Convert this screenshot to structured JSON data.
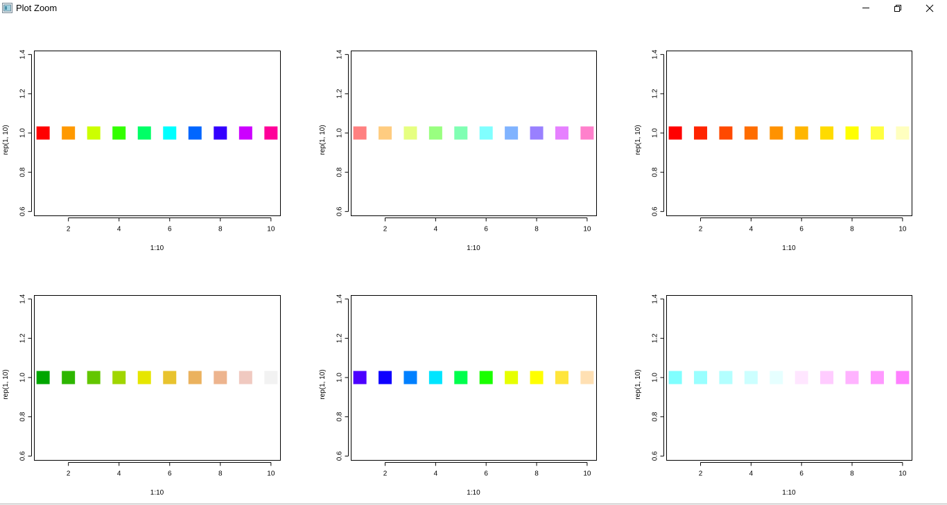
{
  "window": {
    "title": "Plot Zoom",
    "icon": "r-plot-window-icon",
    "controls": [
      "minimize-icon",
      "restore-icon",
      "close-icon"
    ]
  },
  "chart_data": [
    {
      "type": "scatter",
      "marker": "filled-square",
      "xlabel": "1:10",
      "ylabel": "rep(1, 10)",
      "x": [
        1,
        2,
        3,
        4,
        5,
        6,
        7,
        8,
        9,
        10
      ],
      "y": [
        1,
        1,
        1,
        1,
        1,
        1,
        1,
        1,
        1,
        1
      ],
      "colors": [
        "#FF0000",
        "#FF9900",
        "#CCFF00",
        "#33FF00",
        "#00FF66",
        "#00FFFF",
        "#0066FF",
        "#3300FF",
        "#CC00FF",
        "#FF0099"
      ],
      "xticks": [
        2,
        4,
        6,
        8,
        10
      ],
      "yticks": [
        "0.6",
        "0.8",
        "1.0",
        "1.2",
        "1.4"
      ],
      "xlim": [
        0.64,
        10.36
      ],
      "ylim": [
        0.58,
        1.42
      ]
    },
    {
      "type": "scatter",
      "marker": "filled-square",
      "xlabel": "1:10",
      "ylabel": "rep(1, 10)",
      "x": [
        1,
        2,
        3,
        4,
        5,
        6,
        7,
        8,
        9,
        10
      ],
      "y": [
        1,
        1,
        1,
        1,
        1,
        1,
        1,
        1,
        1,
        1
      ],
      "colors": [
        "#FF8080",
        "#FFCC80",
        "#E6FF80",
        "#99FF80",
        "#80FFB3",
        "#80FFFF",
        "#80B3FF",
        "#9980FF",
        "#E680FF",
        "#FF80CC"
      ],
      "xticks": [
        2,
        4,
        6,
        8,
        10
      ],
      "yticks": [
        "0.6",
        "0.8",
        "1.0",
        "1.2",
        "1.4"
      ],
      "xlim": [
        0.64,
        10.36
      ],
      "ylim": [
        0.58,
        1.42
      ]
    },
    {
      "type": "scatter",
      "marker": "filled-square",
      "xlabel": "1:10",
      "ylabel": "rep(1, 10)",
      "x": [
        1,
        2,
        3,
        4,
        5,
        6,
        7,
        8,
        9,
        10
      ],
      "y": [
        1,
        1,
        1,
        1,
        1,
        1,
        1,
        1,
        1,
        1
      ],
      "colors": [
        "#FF0000",
        "#FF2400",
        "#FF4900",
        "#FF6D00",
        "#FF9200",
        "#FFB600",
        "#FFDB00",
        "#FFFF00",
        "#FFFF40",
        "#FFFFBF"
      ],
      "xticks": [
        2,
        4,
        6,
        8,
        10
      ],
      "yticks": [
        "0.6",
        "0.8",
        "1.0",
        "1.2",
        "1.4"
      ],
      "xlim": [
        0.64,
        10.36
      ],
      "ylim": [
        0.58,
        1.42
      ]
    },
    {
      "type": "scatter",
      "marker": "filled-square",
      "xlabel": "1:10",
      "ylabel": "rep(1, 10)",
      "x": [
        1,
        2,
        3,
        4,
        5,
        6,
        7,
        8,
        9,
        10
      ],
      "y": [
        1,
        1,
        1,
        1,
        1,
        1,
        1,
        1,
        1,
        1
      ],
      "colors": [
        "#00A600",
        "#2DB600",
        "#63C600",
        "#A0D600",
        "#E6E600",
        "#E8C32E",
        "#EBB25E",
        "#EDB48E",
        "#F0C9C0",
        "#F2F2F2"
      ],
      "xticks": [
        2,
        4,
        6,
        8,
        10
      ],
      "yticks": [
        "0.6",
        "0.8",
        "1.0",
        "1.2",
        "1.4"
      ],
      "xlim": [
        0.64,
        10.36
      ],
      "ylim": [
        0.58,
        1.42
      ]
    },
    {
      "type": "scatter",
      "marker": "filled-square",
      "xlabel": "1:10",
      "ylabel": "rep(1, 10)",
      "x": [
        1,
        2,
        3,
        4,
        5,
        6,
        7,
        8,
        9,
        10
      ],
      "y": [
        1,
        1,
        1,
        1,
        1,
        1,
        1,
        1,
        1,
        1
      ],
      "colors": [
        "#4C00FF",
        "#0F00FF",
        "#0080FF",
        "#00E5FF",
        "#00FF4D",
        "#1AFF00",
        "#E6FF00",
        "#FFFF00",
        "#FFE53B",
        "#FFE0B3"
      ],
      "xticks": [
        2,
        4,
        6,
        8,
        10
      ],
      "yticks": [
        "0.6",
        "0.8",
        "1.0",
        "1.2",
        "1.4"
      ],
      "xlim": [
        0.64,
        10.36
      ],
      "ylim": [
        0.58,
        1.42
      ]
    },
    {
      "type": "scatter",
      "marker": "filled-square",
      "xlabel": "1:10",
      "ylabel": "rep(1, 10)",
      "x": [
        1,
        2,
        3,
        4,
        5,
        6,
        7,
        8,
        9,
        10
      ],
      "y": [
        1,
        1,
        1,
        1,
        1,
        1,
        1,
        1,
        1,
        1
      ],
      "colors": [
        "#80FFFF",
        "#99FFFF",
        "#B3FFFF",
        "#CCFFFF",
        "#E6FFFF",
        "#FFE6FF",
        "#FFCCFF",
        "#FFB3FF",
        "#FF99FF",
        "#FF80FF"
      ],
      "xticks": [
        2,
        4,
        6,
        8,
        10
      ],
      "yticks": [
        "0.6",
        "0.8",
        "1.0",
        "1.2",
        "1.4"
      ],
      "xlim": [
        0.64,
        10.36
      ],
      "ylim": [
        0.58,
        1.42
      ]
    }
  ]
}
